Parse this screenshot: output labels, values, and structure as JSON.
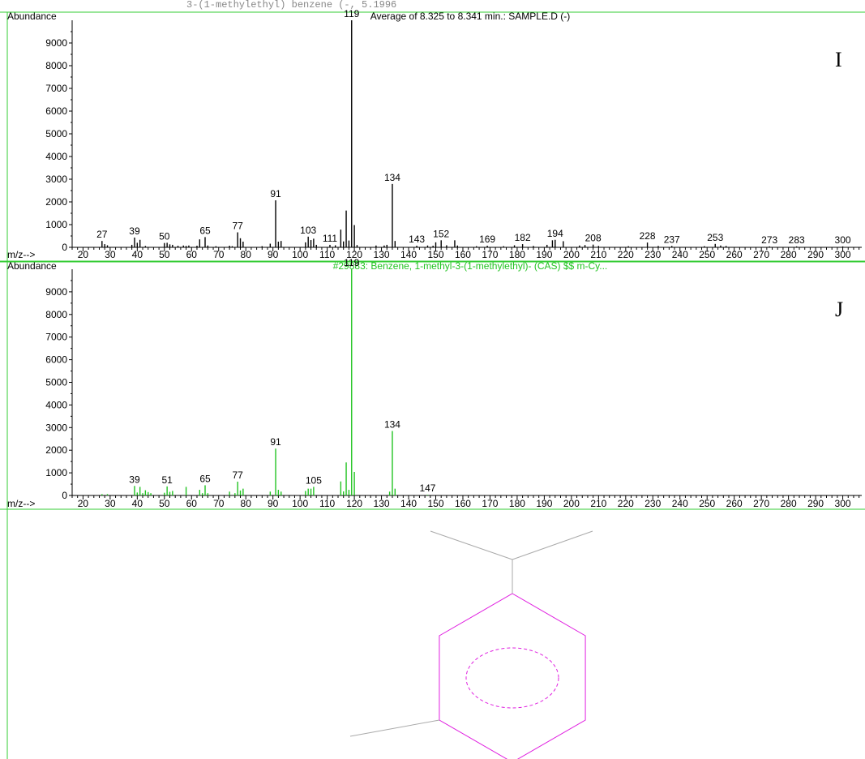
{
  "header_text": "3-(1-methylethyl) benzene (-, 5.1996",
  "spectra": [
    {
      "panel_label": "I",
      "ylabel": "Abundance",
      "xlabel": "m/z-->",
      "title": "Average of 8.325 to 8.341 min.: SAMPLE.D (-)",
      "color": "#000000",
      "y_ticks": [
        0,
        1000,
        2000,
        3000,
        4000,
        5000,
        6000,
        7000,
        8000,
        9000
      ],
      "x_ticks": [
        20,
        30,
        40,
        50,
        60,
        70,
        80,
        90,
        100,
        110,
        120,
        130,
        140,
        150,
        160,
        170,
        180,
        190,
        200,
        210,
        220,
        230,
        240,
        250,
        260,
        270,
        280,
        290,
        300
      ],
      "xlim": [
        16,
        307
      ],
      "ylim": [
        0,
        10000
      ],
      "peaks": [
        {
          "mz": 27,
          "ab": 280,
          "label": "27"
        },
        {
          "mz": 28,
          "ab": 140
        },
        {
          "mz": 29,
          "ab": 90
        },
        {
          "mz": 38,
          "ab": 110
        },
        {
          "mz": 39,
          "ab": 430,
          "label": "39"
        },
        {
          "mz": 40,
          "ab": 200
        },
        {
          "mz": 41,
          "ab": 330
        },
        {
          "mz": 43,
          "ab": 60
        },
        {
          "mz": 50,
          "ab": 190,
          "label": "50"
        },
        {
          "mz": 51,
          "ab": 200
        },
        {
          "mz": 52,
          "ab": 130
        },
        {
          "mz": 53,
          "ab": 110
        },
        {
          "mz": 55,
          "ab": 70
        },
        {
          "mz": 57,
          "ab": 80
        },
        {
          "mz": 58,
          "ab": 60
        },
        {
          "mz": 59,
          "ab": 80
        },
        {
          "mz": 62,
          "ab": 70
        },
        {
          "mz": 63,
          "ab": 350
        },
        {
          "mz": 65,
          "ab": 450,
          "label": "65"
        },
        {
          "mz": 66,
          "ab": 80
        },
        {
          "mz": 69,
          "ab": 50
        },
        {
          "mz": 74,
          "ab": 70
        },
        {
          "mz": 75,
          "ab": 50
        },
        {
          "mz": 77,
          "ab": 660,
          "label": "77"
        },
        {
          "mz": 78,
          "ab": 400
        },
        {
          "mz": 79,
          "ab": 250
        },
        {
          "mz": 86,
          "ab": 50
        },
        {
          "mz": 89,
          "ab": 160
        },
        {
          "mz": 91,
          "ab": 2070,
          "label": "91"
        },
        {
          "mz": 92,
          "ab": 250
        },
        {
          "mz": 93,
          "ab": 280
        },
        {
          "mz": 102,
          "ab": 220
        },
        {
          "mz": 103,
          "ab": 470,
          "label": "103"
        },
        {
          "mz": 104,
          "ab": 320
        },
        {
          "mz": 105,
          "ab": 380
        },
        {
          "mz": 106,
          "ab": 110
        },
        {
          "mz": 111,
          "ab": 110,
          "label": "111"
        },
        {
          "mz": 113,
          "ab": 90
        },
        {
          "mz": 115,
          "ab": 780
        },
        {
          "mz": 116,
          "ab": 260
        },
        {
          "mz": 117,
          "ab": 1620
        },
        {
          "mz": 118,
          "ab": 300
        },
        {
          "mz": 119,
          "ab": 9999,
          "label": "119"
        },
        {
          "mz": 120,
          "ab": 980
        },
        {
          "mz": 121,
          "ab": 100
        },
        {
          "mz": 128,
          "ab": 80
        },
        {
          "mz": 131,
          "ab": 80
        },
        {
          "mz": 132,
          "ab": 110
        },
        {
          "mz": 134,
          "ab": 2790,
          "label": "134"
        },
        {
          "mz": 135,
          "ab": 280
        },
        {
          "mz": 143,
          "ab": 70,
          "label": "143"
        },
        {
          "mz": 147,
          "ab": 80
        },
        {
          "mz": 149,
          "ab": 70
        },
        {
          "mz": 150,
          "ab": 220
        },
        {
          "mz": 152,
          "ab": 310,
          "label": "152"
        },
        {
          "mz": 154,
          "ab": 90
        },
        {
          "mz": 157,
          "ab": 310
        },
        {
          "mz": 158,
          "ab": 80
        },
        {
          "mz": 165,
          "ab": 50
        },
        {
          "mz": 169,
          "ab": 70,
          "label": "169"
        },
        {
          "mz": 175,
          "ab": 50
        },
        {
          "mz": 179,
          "ab": 90
        },
        {
          "mz": 182,
          "ab": 140,
          "label": "182"
        },
        {
          "mz": 186,
          "ab": 60
        },
        {
          "mz": 191,
          "ab": 110
        },
        {
          "mz": 193,
          "ab": 310
        },
        {
          "mz": 194,
          "ab": 330,
          "label": "194"
        },
        {
          "mz": 197,
          "ab": 270
        },
        {
          "mz": 203,
          "ab": 80
        },
        {
          "mz": 205,
          "ab": 100
        },
        {
          "mz": 208,
          "ab": 120,
          "label": "208"
        },
        {
          "mz": 210,
          "ab": 60
        },
        {
          "mz": 221,
          "ab": 50
        },
        {
          "mz": 228,
          "ab": 210,
          "label": "228"
        },
        {
          "mz": 232,
          "ab": 60
        },
        {
          "mz": 237,
          "ab": 60,
          "label": "237"
        },
        {
          "mz": 249,
          "ab": 50
        },
        {
          "mz": 253,
          "ab": 150,
          "label": "253"
        },
        {
          "mz": 255,
          "ab": 80
        },
        {
          "mz": 257,
          "ab": 60
        },
        {
          "mz": 273,
          "ab": 40,
          "label": "273"
        },
        {
          "mz": 283,
          "ab": 40,
          "label": "283"
        },
        {
          "mz": 300,
          "ab": 40,
          "label": "300"
        }
      ]
    },
    {
      "panel_label": "J",
      "ylabel": "Abundance",
      "xlabel": "m/z-->",
      "title": "#29883: Benzene, 1-methyl-3-(1-methylethyl)- (CAS) $$ m-Cy...",
      "color": "#22c322",
      "y_ticks": [
        0,
        1000,
        2000,
        3000,
        4000,
        5000,
        6000,
        7000,
        8000,
        9000
      ],
      "x_ticks": [
        20,
        30,
        40,
        50,
        60,
        70,
        80,
        90,
        100,
        110,
        120,
        130,
        140,
        150,
        160,
        170,
        180,
        190,
        200,
        210,
        220,
        230,
        240,
        250,
        260,
        270,
        280,
        290,
        300
      ],
      "xlim": [
        16,
        307
      ],
      "ylim": [
        0,
        10000
      ],
      "peaks": [
        {
          "mz": 27,
          "ab": 60
        },
        {
          "mz": 29,
          "ab": 60
        },
        {
          "mz": 39,
          "ab": 420,
          "label": "39"
        },
        {
          "mz": 40,
          "ab": 130
        },
        {
          "mz": 41,
          "ab": 380
        },
        {
          "mz": 42,
          "ab": 100
        },
        {
          "mz": 43,
          "ab": 230
        },
        {
          "mz": 44,
          "ab": 150
        },
        {
          "mz": 45,
          "ab": 100
        },
        {
          "mz": 50,
          "ab": 120
        },
        {
          "mz": 51,
          "ab": 400,
          "label": "51"
        },
        {
          "mz": 52,
          "ab": 160
        },
        {
          "mz": 53,
          "ab": 200
        },
        {
          "mz": 58,
          "ab": 380
        },
        {
          "mz": 63,
          "ab": 250
        },
        {
          "mz": 64,
          "ab": 100
        },
        {
          "mz": 65,
          "ab": 450,
          "label": "65"
        },
        {
          "mz": 66,
          "ab": 100
        },
        {
          "mz": 74,
          "ab": 170
        },
        {
          "mz": 76,
          "ab": 100
        },
        {
          "mz": 77,
          "ab": 610,
          "label": "77"
        },
        {
          "mz": 78,
          "ab": 220
        },
        {
          "mz": 79,
          "ab": 300
        },
        {
          "mz": 89,
          "ab": 170
        },
        {
          "mz": 91,
          "ab": 2070,
          "label": "91"
        },
        {
          "mz": 92,
          "ab": 250
        },
        {
          "mz": 93,
          "ab": 170
        },
        {
          "mz": 102,
          "ab": 200
        },
        {
          "mz": 103,
          "ab": 300
        },
        {
          "mz": 104,
          "ab": 300
        },
        {
          "mz": 105,
          "ab": 380,
          "label": "105"
        },
        {
          "mz": 115,
          "ab": 620
        },
        {
          "mz": 116,
          "ab": 180
        },
        {
          "mz": 117,
          "ab": 1460
        },
        {
          "mz": 118,
          "ab": 250
        },
        {
          "mz": 119,
          "ab": 9999,
          "label": "119"
        },
        {
          "mz": 120,
          "ab": 1040
        },
        {
          "mz": 133,
          "ab": 170
        },
        {
          "mz": 134,
          "ab": 2850,
          "label": "134"
        },
        {
          "mz": 135,
          "ab": 300
        },
        {
          "mz": 147,
          "ab": 30,
          "label": "147"
        }
      ]
    }
  ],
  "structure": {
    "name": "1-methyl-3-(1-methylethyl)benzene",
    "bond_color": "#aaaaaa",
    "ring_color": "#e020e0",
    "border_color": "#33cc33"
  }
}
